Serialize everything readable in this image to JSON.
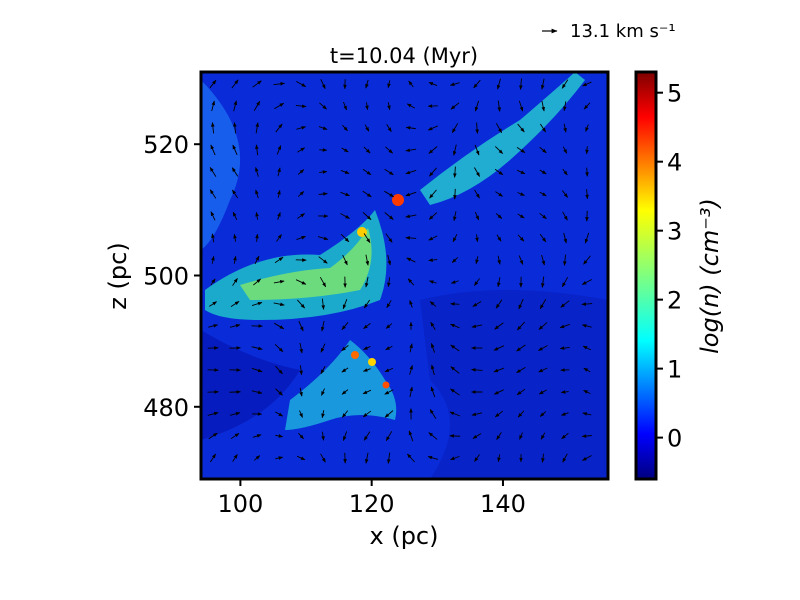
{
  "chart_data": {
    "type": "heatmap",
    "title": "t=10.04 (Myr)",
    "xlabel": "x (pc)",
    "ylabel": "z (pc)",
    "xlim": [
      94,
      156
    ],
    "ylim": [
      469,
      531
    ],
    "xticks": [
      100,
      120,
      140
    ],
    "yticks": [
      480,
      500,
      520
    ],
    "colorbar": {
      "label": "log(n) (cm⁻³)",
      "range": [
        -0.6,
        5.3
      ],
      "ticks": [
        0,
        1,
        2,
        3,
        4,
        5
      ],
      "colormap": "jet"
    },
    "quiver_key": {
      "label": "13.1 km s⁻¹",
      "value": 13.1
    },
    "overlay": "velocity vectors (quiver)",
    "grid": false
  }
}
